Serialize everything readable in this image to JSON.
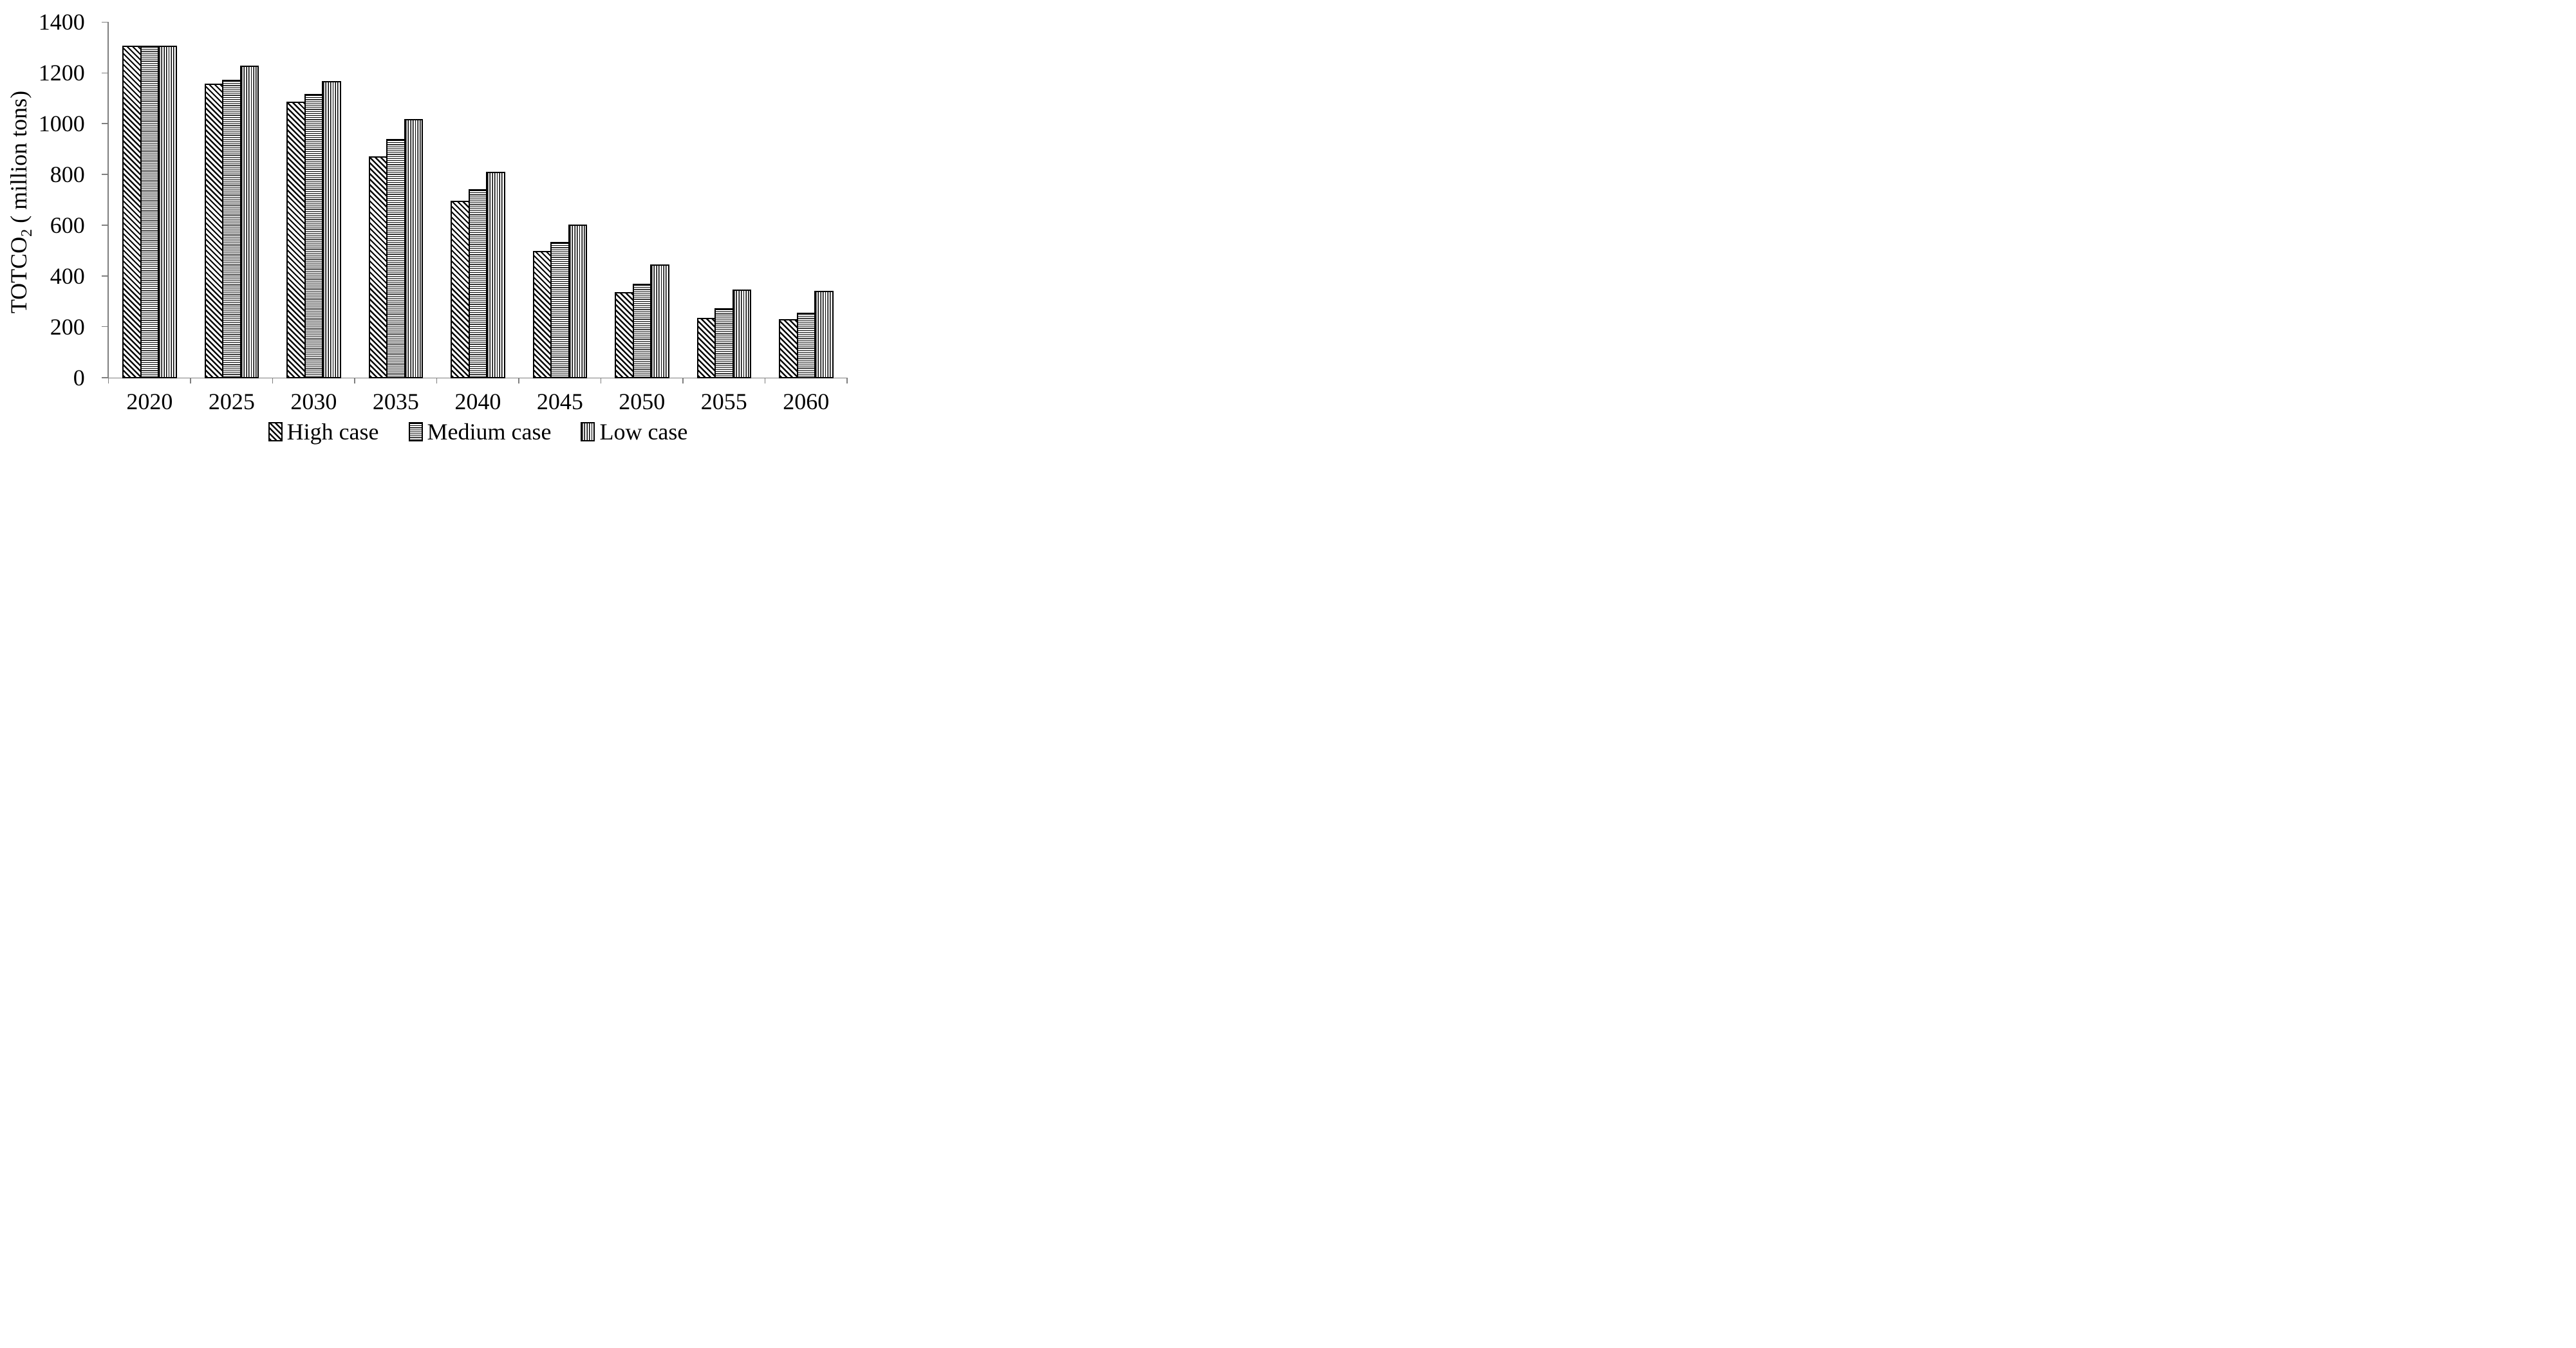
{
  "figure": {
    "background": "#ffffff",
    "axis_color": "#7f7f7f",
    "bar_outline_color": "#000000",
    "hatch_color": "#000000"
  },
  "chart_data": {
    "type": "bar",
    "title": "",
    "xlabel": "",
    "ylabel": {
      "base": "TOTCO",
      "subscript": "2",
      "rest": " ( million tons)"
    },
    "categories": [
      "2020",
      "2025",
      "2030",
      "2035",
      "2040",
      "2045",
      "2050",
      "2055",
      "2060"
    ],
    "series": [
      {
        "name": "High case",
        "hatch": "diagonal",
        "values": [
          1310,
          1160,
          1090,
          875,
          700,
          503,
          340,
          238,
          233
        ]
      },
      {
        "name": "Medium case",
        "hatch": "horizontal",
        "values": [
          1310,
          1175,
          1120,
          942,
          745,
          538,
          372,
          276,
          260
        ]
      },
      {
        "name": "Low case",
        "hatch": "vertical",
        "values": [
          1310,
          1232,
          1172,
          1022,
          815,
          606,
          448,
          350,
          346
        ]
      }
    ],
    "ylim": [
      0,
      1400
    ],
    "yticks": [
      0,
      200,
      400,
      600,
      800,
      1000,
      1200,
      1400
    ],
    "grid": false,
    "legend_position": "bottom"
  }
}
